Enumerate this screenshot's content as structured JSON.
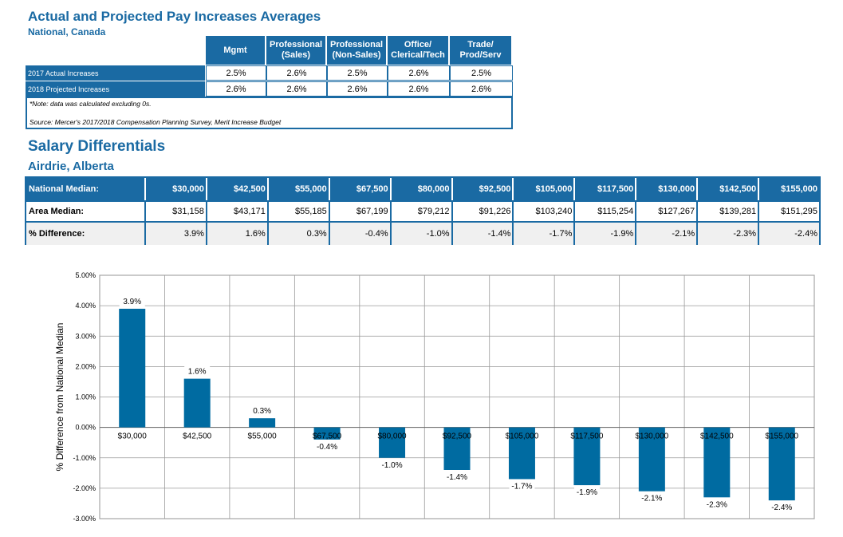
{
  "pay_table": {
    "title": "Actual and Projected Pay Increases Averages",
    "subtitle": "National, Canada",
    "columns": [
      [
        "Mgmt"
      ],
      [
        "Professional",
        "(Sales)"
      ],
      [
        "Professional",
        "(Non-Sales)"
      ],
      [
        "Office/",
        "Clerical/Tech"
      ],
      [
        "Trade/",
        "Prod/Serv"
      ]
    ],
    "rows": [
      {
        "label": "2017 Actual Increases",
        "values": [
          "2.5%",
          "2.6%",
          "2.5%",
          "2.6%",
          "2.5%"
        ]
      },
      {
        "label": "2018 Projected Increases",
        "values": [
          "2.6%",
          "2.6%",
          "2.6%",
          "2.6%",
          "2.6%"
        ]
      }
    ],
    "note": "*Note: data was calculated excluding 0s.",
    "source": "Source: Mercer's 2017/2018 Compensation Planning Survey, Merit Increase Budget"
  },
  "salary_table": {
    "title": "Salary Differentials",
    "subtitle": "Airdrie, Alberta",
    "rows": [
      {
        "label": "National Median:",
        "values": [
          "$30,000",
          "$42,500",
          "$55,000",
          "$67,500",
          "$80,000",
          "$92,500",
          "$105,000",
          "$117,500",
          "$130,000",
          "$142,500",
          "$155,000"
        ]
      },
      {
        "label": "Area Median:",
        "values": [
          "$31,158",
          "$43,171",
          "$55,185",
          "$67,199",
          "$79,212",
          "$91,226",
          "$103,240",
          "$115,254",
          "$127,267",
          "$139,281",
          "$151,295"
        ]
      },
      {
        "label": "% Difference:",
        "values": [
          "3.9%",
          "1.6%",
          "0.3%",
          "-0.4%",
          "-1.0%",
          "-1.4%",
          "-1.7%",
          "-1.9%",
          "-2.1%",
          "-2.3%",
          "-2.4%"
        ]
      }
    ]
  },
  "chart_data": {
    "type": "bar",
    "categories": [
      "$30,000",
      "$42,500",
      "$55,000",
      "$67,500",
      "$80,000",
      "$92,500",
      "$105,000",
      "$117,500",
      "$130,000",
      "$142,500",
      "$155,000"
    ],
    "values": [
      3.9,
      1.6,
      0.3,
      -0.4,
      -1.0,
      -1.4,
      -1.7,
      -1.9,
      -2.1,
      -2.3,
      -2.4
    ],
    "data_labels": [
      "3.9%",
      "1.6%",
      "0.3%",
      "-0.4%",
      "-1.0%",
      "-1.4%",
      "-1.7%",
      "-1.9%",
      "-2.1%",
      "-2.3%",
      "-2.4%"
    ],
    "title": "",
    "xlabel": "",
    "ylabel": "% Difference from National Median",
    "ylim": [
      -3,
      5
    ],
    "yticks": [
      "5.00%",
      "4.00%",
      "3.00%",
      "2.00%",
      "1.00%",
      "0.00%",
      "-1.00%",
      "-2.00%",
      "-3.00%"
    ],
    "grid": true,
    "bar_color": "#006ba1"
  }
}
